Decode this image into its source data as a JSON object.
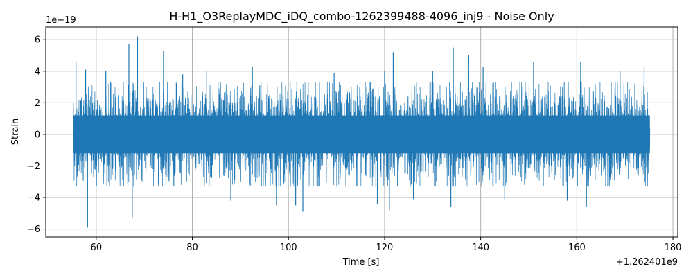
{
  "chart_data": {
    "type": "line",
    "title": "H-H1_O3ReplayMDC_iDQ_combo-1262399488-4096_inj9 - Noise Only",
    "xlabel": "Time [s]",
    "ylabel": "Strain",
    "x_offset_label": "+1.262401e9",
    "y_scale_label": "1e−19",
    "xlim": [
      49.5,
      181
    ],
    "ylim": [
      -6.5,
      6.8
    ],
    "x_ticks": [
      60,
      80,
      100,
      120,
      140,
      160,
      180
    ],
    "x_tick_labels": [
      "60",
      "80",
      "100",
      "120",
      "140",
      "160",
      "180"
    ],
    "y_ticks": [
      -6,
      -4,
      -2,
      0,
      2,
      4,
      6
    ],
    "y_tick_labels": [
      "−6",
      "−4",
      "−2",
      "0",
      "2",
      "4",
      "6"
    ],
    "grid": true,
    "series": [
      {
        "color": "#1f77b4",
        "x_range": [
          55.2,
          175.2
        ],
        "typical_envelope": [
          -2.6,
          2.6
        ],
        "peaks": [
          {
            "x": 55.8,
            "y": 4.6
          },
          {
            "x": 57.8,
            "y": 4.1
          },
          {
            "x": 58.2,
            "y": -5.9
          },
          {
            "x": 62.0,
            "y": 4.0
          },
          {
            "x": 66.8,
            "y": 5.7
          },
          {
            "x": 67.5,
            "y": -5.3
          },
          {
            "x": 68.6,
            "y": 6.2
          },
          {
            "x": 74.0,
            "y": 5.3
          },
          {
            "x": 78.0,
            "y": 3.8
          },
          {
            "x": 83.0,
            "y": 4.0
          },
          {
            "x": 88.0,
            "y": -4.2
          },
          {
            "x": 92.5,
            "y": 4.3
          },
          {
            "x": 97.5,
            "y": -4.5
          },
          {
            "x": 101.5,
            "y": -4.5
          },
          {
            "x": 103.0,
            "y": -4.9
          },
          {
            "x": 109.5,
            "y": 3.9
          },
          {
            "x": 117.0,
            "y": 3.3
          },
          {
            "x": 118.5,
            "y": -4.4
          },
          {
            "x": 120.0,
            "y": 4.0
          },
          {
            "x": 121.0,
            "y": -4.8
          },
          {
            "x": 121.8,
            "y": 5.2
          },
          {
            "x": 126.0,
            "y": -4.1
          },
          {
            "x": 130.0,
            "y": 4.0
          },
          {
            "x": 133.8,
            "y": -4.6
          },
          {
            "x": 134.3,
            "y": 5.5
          },
          {
            "x": 137.5,
            "y": 5.0
          },
          {
            "x": 140.5,
            "y": 4.3
          },
          {
            "x": 145.0,
            "y": -4.1
          },
          {
            "x": 151.0,
            "y": 4.6
          },
          {
            "x": 158.0,
            "y": -4.2
          },
          {
            "x": 160.8,
            "y": 4.6
          },
          {
            "x": 162.0,
            "y": -4.6
          },
          {
            "x": 169.0,
            "y": 4.0
          },
          {
            "x": 174.0,
            "y": 4.3
          }
        ]
      }
    ]
  }
}
